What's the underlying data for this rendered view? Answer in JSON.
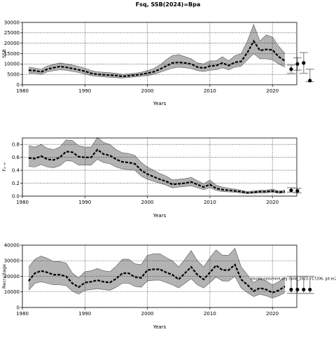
{
  "page": {
    "title": "Fsq, SSB(2024)=Bpa"
  },
  "chart_data": [
    {
      "id": "ssb",
      "type": "area",
      "xlabel": "Years",
      "ylabel": "SSB",
      "xlim": [
        1980,
        2023.9
      ],
      "ylim": [
        0,
        30000
      ],
      "xticks": [
        1980,
        1990,
        2000,
        2010,
        2020
      ],
      "yticks": [
        0,
        5000,
        10000,
        15000,
        20000,
        25000,
        30000
      ],
      "years": [
        1981,
        1982,
        1983,
        1984,
        1985,
        1986,
        1987,
        1988,
        1989,
        1990,
        1991,
        1992,
        1993,
        1994,
        1995,
        1996,
        1997,
        1998,
        1999,
        2000,
        2001,
        2002,
        2003,
        2004,
        2005,
        2006,
        2007,
        2008,
        2009,
        2010,
        2011,
        2012,
        2013,
        2014,
        2015,
        2016,
        2017,
        2018,
        2019,
        2020,
        2021,
        2022
      ],
      "median": [
        7000,
        6800,
        6200,
        7500,
        8200,
        8800,
        8400,
        7800,
        7200,
        6500,
        5500,
        5000,
        4800,
        4600,
        4400,
        4000,
        4300,
        4600,
        5000,
        5600,
        6200,
        7500,
        9000,
        10500,
        10800,
        10500,
        10000,
        8500,
        8000,
        9000,
        9200,
        10500,
        9200,
        10800,
        11200,
        15500,
        21000,
        16500,
        17000,
        16800,
        13500,
        11500
      ],
      "upper": [
        8500,
        8000,
        7500,
        9000,
        9800,
        10500,
        10000,
        9500,
        8800,
        8000,
        6800,
        6200,
        6000,
        5800,
        5500,
        5000,
        5200,
        5500,
        6000,
        6800,
        7800,
        9500,
        12000,
        14000,
        14500,
        13500,
        12500,
        10500,
        10000,
        11500,
        11500,
        13500,
        11500,
        14000,
        15000,
        21000,
        29000,
        21000,
        24000,
        23000,
        18500,
        15000
      ],
      "lower": [
        5500,
        5500,
        5000,
        6200,
        6800,
        7200,
        7000,
        6400,
        5900,
        5200,
        4400,
        4000,
        3800,
        3600,
        3400,
        3200,
        3500,
        3800,
        4000,
        4400,
        5000,
        6000,
        7000,
        8000,
        8500,
        8200,
        7800,
        6800,
        6400,
        7000,
        7200,
        8200,
        7200,
        8500,
        9000,
        12000,
        15000,
        12500,
        12500,
        12000,
        10000,
        8500
      ],
      "proj_years": [
        2023,
        2024,
        2025,
        2026
      ],
      "proj_points": [
        7500,
        10000,
        10500,
        2000
      ],
      "proj_upper": [
        9500,
        13000,
        15500,
        7500
      ],
      "proj_lower": [
        5500,
        7000,
        5500,
        1500
      ]
    },
    {
      "id": "fbar",
      "type": "area",
      "xlabel": "Years",
      "ylabel": "F₂₋₆",
      "xlim": [
        1980,
        2023.9
      ],
      "ylim": [
        0,
        0.9
      ],
      "xticks": [
        1980,
        1990,
        2000,
        2010,
        2020
      ],
      "yticks": [
        0.0,
        0.2,
        0.4,
        0.6,
        0.8
      ],
      "ytick_labels": [
        "0.0",
        "0.2",
        "0.4",
        "0.6",
        "0.8"
      ],
      "years": [
        1981,
        1982,
        1983,
        1984,
        1985,
        1986,
        1987,
        1988,
        1989,
        1990,
        1991,
        1992,
        1993,
        1994,
        1995,
        1996,
        1997,
        1998,
        1999,
        2000,
        2001,
        2002,
        2003,
        2004,
        2005,
        2006,
        2007,
        2008,
        2009,
        2010,
        2011,
        2012,
        2013,
        2014,
        2015,
        2016,
        2017,
        2018,
        2019,
        2020,
        2021,
        2022
      ],
      "median": [
        0.59,
        0.58,
        0.62,
        0.57,
        0.56,
        0.6,
        0.69,
        0.68,
        0.61,
        0.6,
        0.6,
        0.72,
        0.65,
        0.63,
        0.57,
        0.53,
        0.52,
        0.5,
        0.4,
        0.34,
        0.3,
        0.26,
        0.23,
        0.18,
        0.19,
        0.2,
        0.22,
        0.18,
        0.14,
        0.18,
        0.12,
        0.1,
        0.09,
        0.08,
        0.07,
        0.05,
        0.06,
        0.07,
        0.07,
        0.08,
        0.06,
        0.07
      ],
      "upper": [
        0.78,
        0.76,
        0.8,
        0.74,
        0.72,
        0.76,
        0.87,
        0.86,
        0.78,
        0.76,
        0.76,
        0.91,
        0.83,
        0.8,
        0.72,
        0.67,
        0.66,
        0.63,
        0.52,
        0.45,
        0.4,
        0.35,
        0.31,
        0.25,
        0.26,
        0.27,
        0.29,
        0.24,
        0.19,
        0.25,
        0.17,
        0.14,
        0.12,
        0.11,
        0.09,
        0.07,
        0.08,
        0.09,
        0.09,
        0.11,
        0.08,
        0.09
      ],
      "lower": [
        0.46,
        0.45,
        0.49,
        0.45,
        0.44,
        0.47,
        0.55,
        0.54,
        0.48,
        0.48,
        0.48,
        0.57,
        0.52,
        0.5,
        0.45,
        0.42,
        0.41,
        0.4,
        0.31,
        0.26,
        0.23,
        0.2,
        0.17,
        0.13,
        0.14,
        0.15,
        0.16,
        0.13,
        0.1,
        0.13,
        0.09,
        0.07,
        0.065,
        0.06,
        0.05,
        0.04,
        0.045,
        0.05,
        0.05,
        0.06,
        0.045,
        0.05
      ],
      "proj_years": [
        2023,
        2024
      ],
      "proj_points": [
        0.09,
        0.08
      ],
      "proj_upper": [
        0.13,
        0.12
      ],
      "proj_lower": [
        0.06,
        0.05
      ]
    },
    {
      "id": "recruitment",
      "type": "area",
      "xlabel": "Years",
      "ylabel": "Recruitage",
      "xlim": [
        1980,
        2023.9
      ],
      "ylim": [
        0,
        40000
      ],
      "xticks": [
        1980,
        1990,
        2000,
        2010,
        2020
      ],
      "yticks": [
        0,
        10000,
        20000,
        30000,
        40000
      ],
      "years": [
        1981,
        1982,
        1983,
        1984,
        1985,
        1986,
        1987,
        1988,
        1989,
        1990,
        1991,
        1992,
        1993,
        1994,
        1995,
        1996,
        1997,
        1998,
        1999,
        2000,
        2001,
        2002,
        2003,
        2004,
        2005,
        2006,
        2007,
        2008,
        2009,
        2010,
        2011,
        2012,
        2013,
        2014,
        2015,
        2016,
        2017,
        2018,
        2019,
        2020,
        2021,
        2022
      ],
      "median": [
        17000,
        22000,
        23500,
        22500,
        21000,
        21000,
        20000,
        15500,
        13000,
        16000,
        16500,
        17500,
        16500,
        16000,
        18500,
        22000,
        22000,
        19500,
        19000,
        24000,
        24500,
        24500,
        22500,
        21000,
        18000,
        22000,
        26000,
        21000,
        18000,
        22500,
        27000,
        24000,
        24000,
        27500,
        18000,
        14500,
        10500,
        12500,
        11500,
        9500,
        11000,
        13500
      ],
      "upper": [
        26000,
        31000,
        33000,
        31500,
        29500,
        29500,
        28500,
        22000,
        19000,
        23000,
        23500,
        25000,
        23500,
        23000,
        26500,
        31000,
        31000,
        28000,
        27500,
        33500,
        34500,
        34500,
        32000,
        30000,
        26000,
        31000,
        36500,
        30000,
        26000,
        32000,
        37000,
        33500,
        33500,
        38000,
        26000,
        21000,
        16000,
        18500,
        17000,
        14500,
        16500,
        19500
      ],
      "lower": [
        11000,
        15500,
        16500,
        15500,
        14500,
        14500,
        14000,
        10500,
        8500,
        11000,
        11500,
        12000,
        11500,
        11000,
        13000,
        15500,
        15500,
        13500,
        13000,
        17000,
        17500,
        17500,
        16000,
        14500,
        12500,
        15500,
        18500,
        14500,
        12500,
        16000,
        19500,
        17000,
        17000,
        20000,
        12500,
        9500,
        7000,
        8500,
        7500,
        6000,
        7500,
        9500
      ],
      "proj_years": [
        2023,
        2024,
        2025,
        2026
      ],
      "proj_points": [
        11500,
        11500,
        11500,
        11500
      ],
      "proj_upper": [
        20000,
        20000,
        20000,
        20000
      ],
      "proj_lower": [
        9000,
        9000,
        9000,
        9000
      ],
      "annotation": "stockassessment.org (Sole_2023, r17206, git:ec2c"
    }
  ]
}
